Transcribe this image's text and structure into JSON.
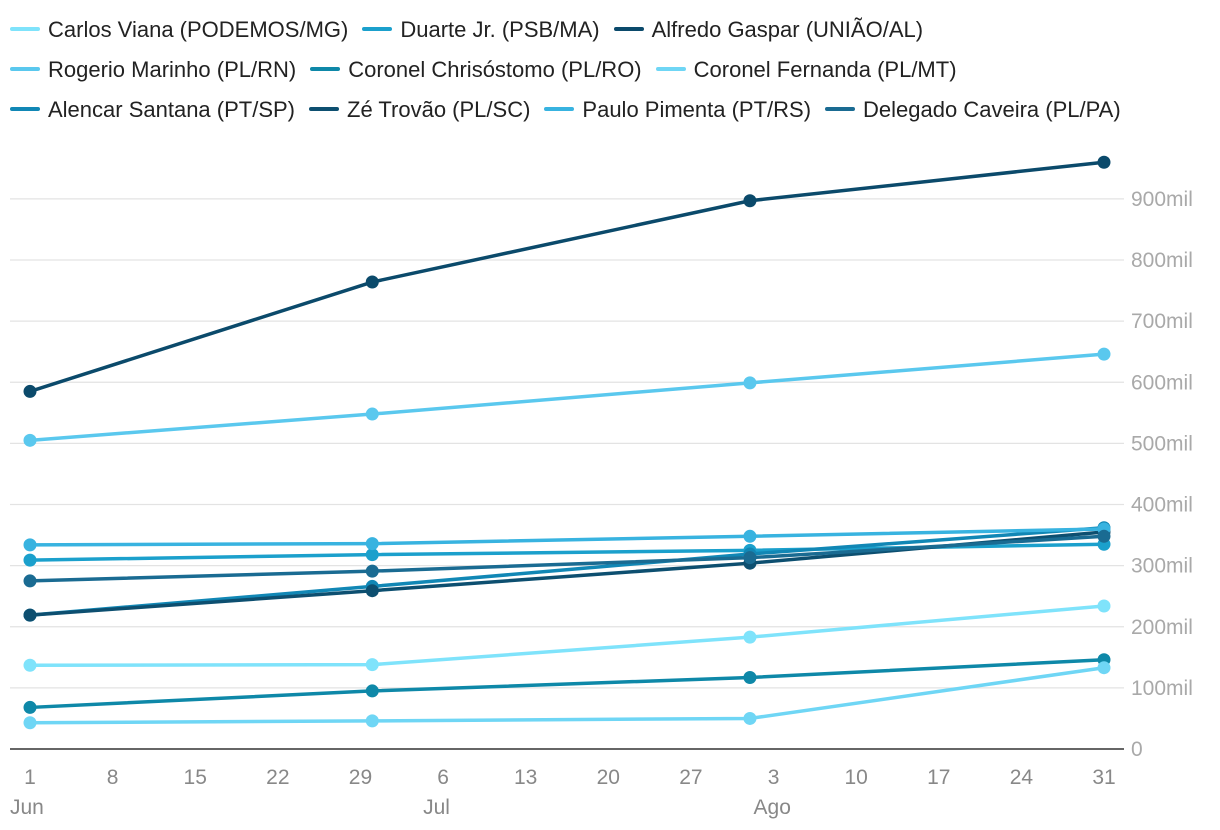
{
  "chart_data": {
    "type": "line",
    "title": "",
    "xlabel": "",
    "ylabel": "",
    "ylim": [
      0,
      980000
    ],
    "x": [
      "1 Jun",
      "30 Jun",
      "1 Ago",
      "31 Ago"
    ],
    "x_day_index": [
      0,
      29,
      61,
      91
    ],
    "x_axis_range_days": [
      0,
      91
    ],
    "y_ticks": [
      {
        "value": 0,
        "label": "0"
      },
      {
        "value": 100000,
        "label": "100mil"
      },
      {
        "value": 200000,
        "label": "200mil"
      },
      {
        "value": 300000,
        "label": "300mil"
      },
      {
        "value": 400000,
        "label": "400mil"
      },
      {
        "value": 500000,
        "label": "500mil"
      },
      {
        "value": 600000,
        "label": "600mil"
      },
      {
        "value": 700000,
        "label": "700mil"
      },
      {
        "value": 800000,
        "label": "800mil"
      },
      {
        "value": 900000,
        "label": "900mil"
      }
    ],
    "x_ticks": [
      {
        "day": 0,
        "label": "1",
        "month": "Jun"
      },
      {
        "day": 7,
        "label": "8"
      },
      {
        "day": 14,
        "label": "15"
      },
      {
        "day": 21,
        "label": "22"
      },
      {
        "day": 28,
        "label": "29"
      },
      {
        "day": 35,
        "label": "6",
        "month": "Jul"
      },
      {
        "day": 42,
        "label": "13"
      },
      {
        "day": 49,
        "label": "20"
      },
      {
        "day": 56,
        "label": "27"
      },
      {
        "day": 63,
        "label": "3",
        "month": "Ago"
      },
      {
        "day": 70,
        "label": "10"
      },
      {
        "day": 77,
        "label": "17"
      },
      {
        "day": 84,
        "label": "24"
      },
      {
        "day": 91,
        "label": "31"
      }
    ],
    "series": [
      {
        "name": "Carlos Viana (PODEMOS/MG)",
        "color": "#7fe3fb",
        "values": [
          137000,
          138000,
          183000,
          234000
        ]
      },
      {
        "name": "Duarte Jr. (PSB/MA)",
        "color": "#1ba0cc",
        "values": [
          309000,
          318000,
          325000,
          335000
        ]
      },
      {
        "name": "Alfredo Gaspar (UNIÃO/AL)",
        "color": "#0b4a6b",
        "values": [
          585000,
          764000,
          897000,
          960000
        ]
      },
      {
        "name": "Rogerio Marinho (PL/RN)",
        "color": "#5ac8ee",
        "values": [
          505000,
          548000,
          599000,
          646000
        ]
      },
      {
        "name": "Coronel Chrisóstomo (PL/RO)",
        "color": "#0e88a8",
        "values": [
          68000,
          95000,
          117000,
          146000
        ]
      },
      {
        "name": "Coronel Fernanda (PL/MT)",
        "color": "#6fd6f5",
        "values": [
          43000,
          46000,
          50000,
          133000
        ]
      },
      {
        "name": "Alencar Santana (PT/SP)",
        "color": "#1187b5",
        "values": [
          219000,
          266000,
          319000,
          362000
        ]
      },
      {
        "name": "Zé Trovão (PL/SC)",
        "color": "#0d4f70",
        "values": [
          219000,
          259000,
          304000,
          355000
        ]
      },
      {
        "name": "Paulo Pimenta (PT/RS)",
        "color": "#38b3e0",
        "values": [
          334000,
          336000,
          348000,
          360000
        ]
      },
      {
        "name": "Delegado Caveira (PL/PA)",
        "color": "#1a6b92",
        "values": [
          275000,
          291000,
          313000,
          348000
        ]
      }
    ]
  }
}
